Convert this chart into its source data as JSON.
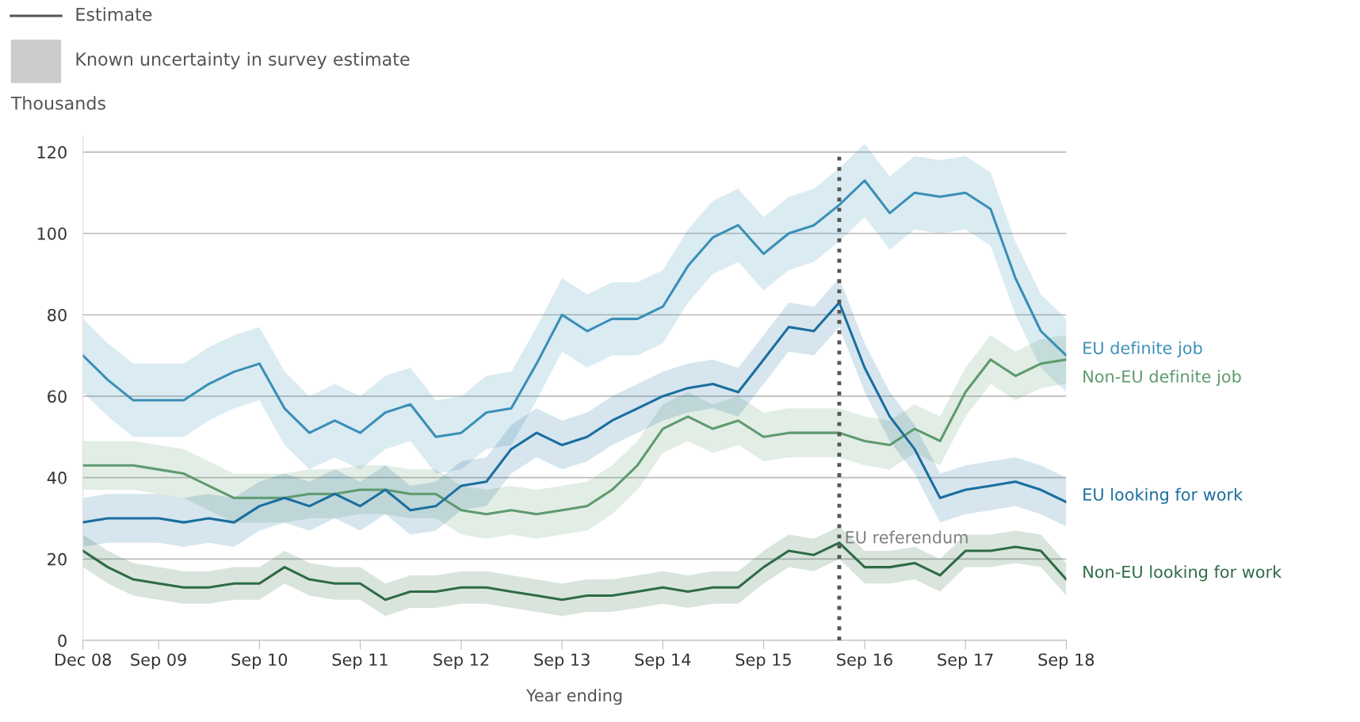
{
  "chart_data": {
    "type": "line",
    "xlabel": "Year ending",
    "ylabel": "Thousands",
    "annotations": [
      "Estimate",
      "Known uncertainty in survey estimate"
    ],
    "x": [
      "2008-12",
      "2009-03",
      "2009-06",
      "2009-09",
      "2009-12",
      "2010-03",
      "2010-06",
      "2010-09",
      "2010-12",
      "2011-03",
      "2011-06",
      "2011-09",
      "2011-12",
      "2012-03",
      "2012-06",
      "2012-09",
      "2012-12",
      "2013-03",
      "2013-06",
      "2013-09",
      "2013-12",
      "2014-03",
      "2014-06",
      "2014-09",
      "2014-12",
      "2015-03",
      "2015-06",
      "2015-09",
      "2015-12",
      "2016-03",
      "2016-06",
      "2016-09",
      "2016-12",
      "2017-03",
      "2017-06",
      "2017-09",
      "2017-12",
      "2018-03",
      "2018-06",
      "2018-09"
    ],
    "series": [
      {
        "name": "EU definite job",
        "color": "#3a8fb7",
        "values": [
          70,
          64,
          59,
          59,
          59,
          63,
          66,
          68,
          57,
          51,
          54,
          51,
          56,
          58,
          50,
          51,
          56,
          57,
          68,
          80,
          76,
          79,
          79,
          82,
          92,
          99,
          102,
          95,
          100,
          102,
          107,
          113,
          105,
          110,
          109,
          110,
          106,
          89,
          76,
          70
        ],
        "lower": [
          61,
          55,
          50,
          50,
          50,
          54,
          57,
          59,
          48,
          42,
          45,
          42,
          47,
          49,
          41,
          42,
          47,
          48,
          59,
          71,
          67,
          70,
          70,
          73,
          83,
          90,
          93,
          86,
          91,
          93,
          98,
          104,
          96,
          101,
          100,
          101,
          97,
          80,
          67,
          61
        ],
        "upper": [
          79,
          73,
          68,
          68,
          68,
          72,
          75,
          77,
          66,
          60,
          63,
          60,
          65,
          67,
          59,
          60,
          65,
          66,
          77,
          89,
          85,
          88,
          88,
          91,
          101,
          108,
          111,
          104,
          109,
          111,
          116,
          122,
          114,
          119,
          118,
          119,
          115,
          98,
          85,
          79
        ]
      },
      {
        "name": "Non-EU definite job",
        "color": "#5e9a6e",
        "values": [
          43,
          43,
          43,
          42,
          41,
          38,
          35,
          35,
          35,
          36,
          36,
          37,
          37,
          36,
          36,
          32,
          31,
          32,
          31,
          32,
          33,
          37,
          43,
          52,
          55,
          52,
          54,
          50,
          51,
          51,
          51,
          49,
          48,
          52,
          49,
          61,
          69,
          65,
          68,
          69
        ],
        "lower": [
          37,
          37,
          37,
          36,
          35,
          32,
          29,
          29,
          29,
          30,
          30,
          31,
          31,
          30,
          30,
          26,
          25,
          26,
          25,
          26,
          27,
          31,
          37,
          46,
          49,
          46,
          48,
          44,
          45,
          45,
          45,
          43,
          42,
          46,
          43,
          55,
          63,
          59,
          62,
          63
        ],
        "upper": [
          49,
          49,
          49,
          48,
          47,
          44,
          41,
          41,
          41,
          42,
          42,
          43,
          43,
          42,
          42,
          38,
          37,
          38,
          37,
          38,
          39,
          43,
          49,
          58,
          61,
          58,
          60,
          56,
          57,
          57,
          57,
          55,
          54,
          58,
          55,
          67,
          75,
          71,
          74,
          75
        ]
      },
      {
        "name": "EU looking for work",
        "color": "#1a6e9e",
        "values": [
          29,
          30,
          30,
          30,
          29,
          30,
          29,
          33,
          35,
          33,
          36,
          33,
          37,
          32,
          33,
          38,
          39,
          47,
          51,
          48,
          50,
          54,
          57,
          60,
          62,
          63,
          61,
          69,
          77,
          76,
          83,
          67,
          55,
          47,
          35,
          37,
          38,
          39,
          37,
          34
        ],
        "lower": [
          23,
          24,
          24,
          24,
          23,
          24,
          23,
          27,
          29,
          27,
          30,
          27,
          31,
          26,
          27,
          32,
          33,
          41,
          45,
          42,
          44,
          48,
          51,
          54,
          56,
          57,
          55,
          63,
          71,
          70,
          77,
          61,
          49,
          41,
          29,
          31,
          32,
          33,
          31,
          28
        ],
        "upper": [
          35,
          36,
          36,
          36,
          35,
          36,
          35,
          39,
          41,
          39,
          42,
          39,
          43,
          38,
          39,
          44,
          45,
          53,
          57,
          54,
          56,
          60,
          63,
          66,
          68,
          69,
          67,
          75,
          83,
          82,
          89,
          73,
          61,
          53,
          41,
          43,
          44,
          45,
          43,
          40
        ]
      },
      {
        "name": "Non-EU looking for work",
        "color": "#2e6b45",
        "values": [
          22,
          18,
          15,
          14,
          13,
          13,
          14,
          14,
          18,
          15,
          14,
          14,
          10,
          12,
          12,
          13,
          13,
          12,
          11,
          10,
          11,
          11,
          12,
          13,
          12,
          13,
          13,
          18,
          22,
          21,
          24,
          18,
          18,
          19,
          16,
          22,
          22,
          23,
          22,
          15
        ],
        "lower": [
          18,
          14,
          11,
          10,
          9,
          9,
          10,
          10,
          14,
          11,
          10,
          10,
          6,
          8,
          8,
          9,
          9,
          8,
          7,
          6,
          7,
          7,
          8,
          9,
          8,
          9,
          9,
          14,
          18,
          17,
          20,
          14,
          14,
          15,
          12,
          18,
          18,
          19,
          18,
          11
        ],
        "upper": [
          26,
          22,
          19,
          18,
          17,
          17,
          18,
          18,
          22,
          19,
          18,
          18,
          14,
          16,
          16,
          17,
          17,
          16,
          15,
          14,
          15,
          15,
          16,
          17,
          16,
          17,
          17,
          22,
          26,
          25,
          28,
          22,
          22,
          23,
          20,
          26,
          26,
          27,
          26,
          19
        ]
      }
    ],
    "xlim": [
      "2008-12",
      "2018-09"
    ],
    "xticks": [
      {
        "value": "2008-12",
        "label": "Dec 08"
      },
      {
        "value": "2009-09",
        "label": "Sep 09"
      },
      {
        "value": "2010-09",
        "label": "Sep 10"
      },
      {
        "value": "2011-09",
        "label": "Sep 11"
      },
      {
        "value": "2012-09",
        "label": "Sep 12"
      },
      {
        "value": "2013-09",
        "label": "Sep 13"
      },
      {
        "value": "2014-09",
        "label": "Sep 14"
      },
      {
        "value": "2015-09",
        "label": "Sep 15"
      },
      {
        "value": "2016-09",
        "label": "Sep 16"
      },
      {
        "value": "2017-09",
        "label": "Sep 17"
      },
      {
        "value": "2018-09",
        "label": "Sep 18"
      }
    ],
    "ylim": [
      0,
      124
    ],
    "yticks": [
      0,
      20,
      40,
      60,
      80,
      100,
      120
    ],
    "ref_lines": [
      {
        "axis": "x",
        "value": "2016-06",
        "label": "EU referendum",
        "color": "#555555",
        "line_style": "dotted"
      }
    ],
    "grid": "y",
    "legend": false,
    "line_style": "solid",
    "marker": "none"
  }
}
